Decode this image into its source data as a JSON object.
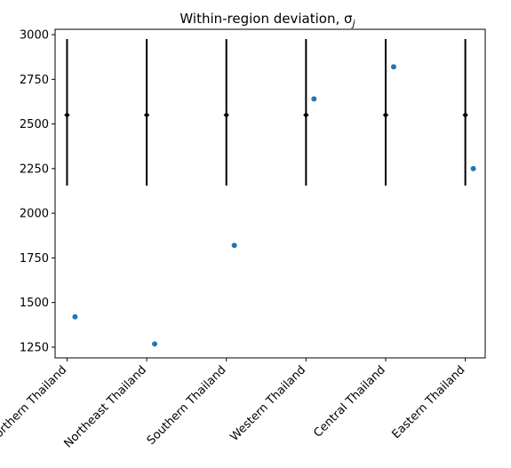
{
  "chart_data": {
    "type": "scatter",
    "title": "Within-region deviation, σ",
    "title_subscript": "j",
    "xlabel": "",
    "ylabel": "",
    "categories": [
      "Northern Thailand",
      "Northeast Thailand",
      "Southern Thailand",
      "Western Thailand",
      "Central Thailand",
      "Eastern Thailand"
    ],
    "ylim": [
      1190,
      3030
    ],
    "yticks": [
      1250,
      1500,
      1750,
      2000,
      2250,
      2500,
      2750,
      3000
    ],
    "grid": false,
    "series": [
      {
        "kind": "errorbar",
        "color": "#000000",
        "center": [
          2550,
          2550,
          2550,
          2550,
          2550,
          2550
        ],
        "lower": [
          2155,
          2155,
          2155,
          2155,
          2155,
          2155
        ],
        "upper": [
          2975,
          2975,
          2975,
          2975,
          2975,
          2975
        ]
      },
      {
        "kind": "points",
        "color": "#1f77b4",
        "offset": 0.1,
        "values": [
          1420,
          1268,
          1820,
          2640,
          2820,
          2250
        ]
      }
    ]
  }
}
